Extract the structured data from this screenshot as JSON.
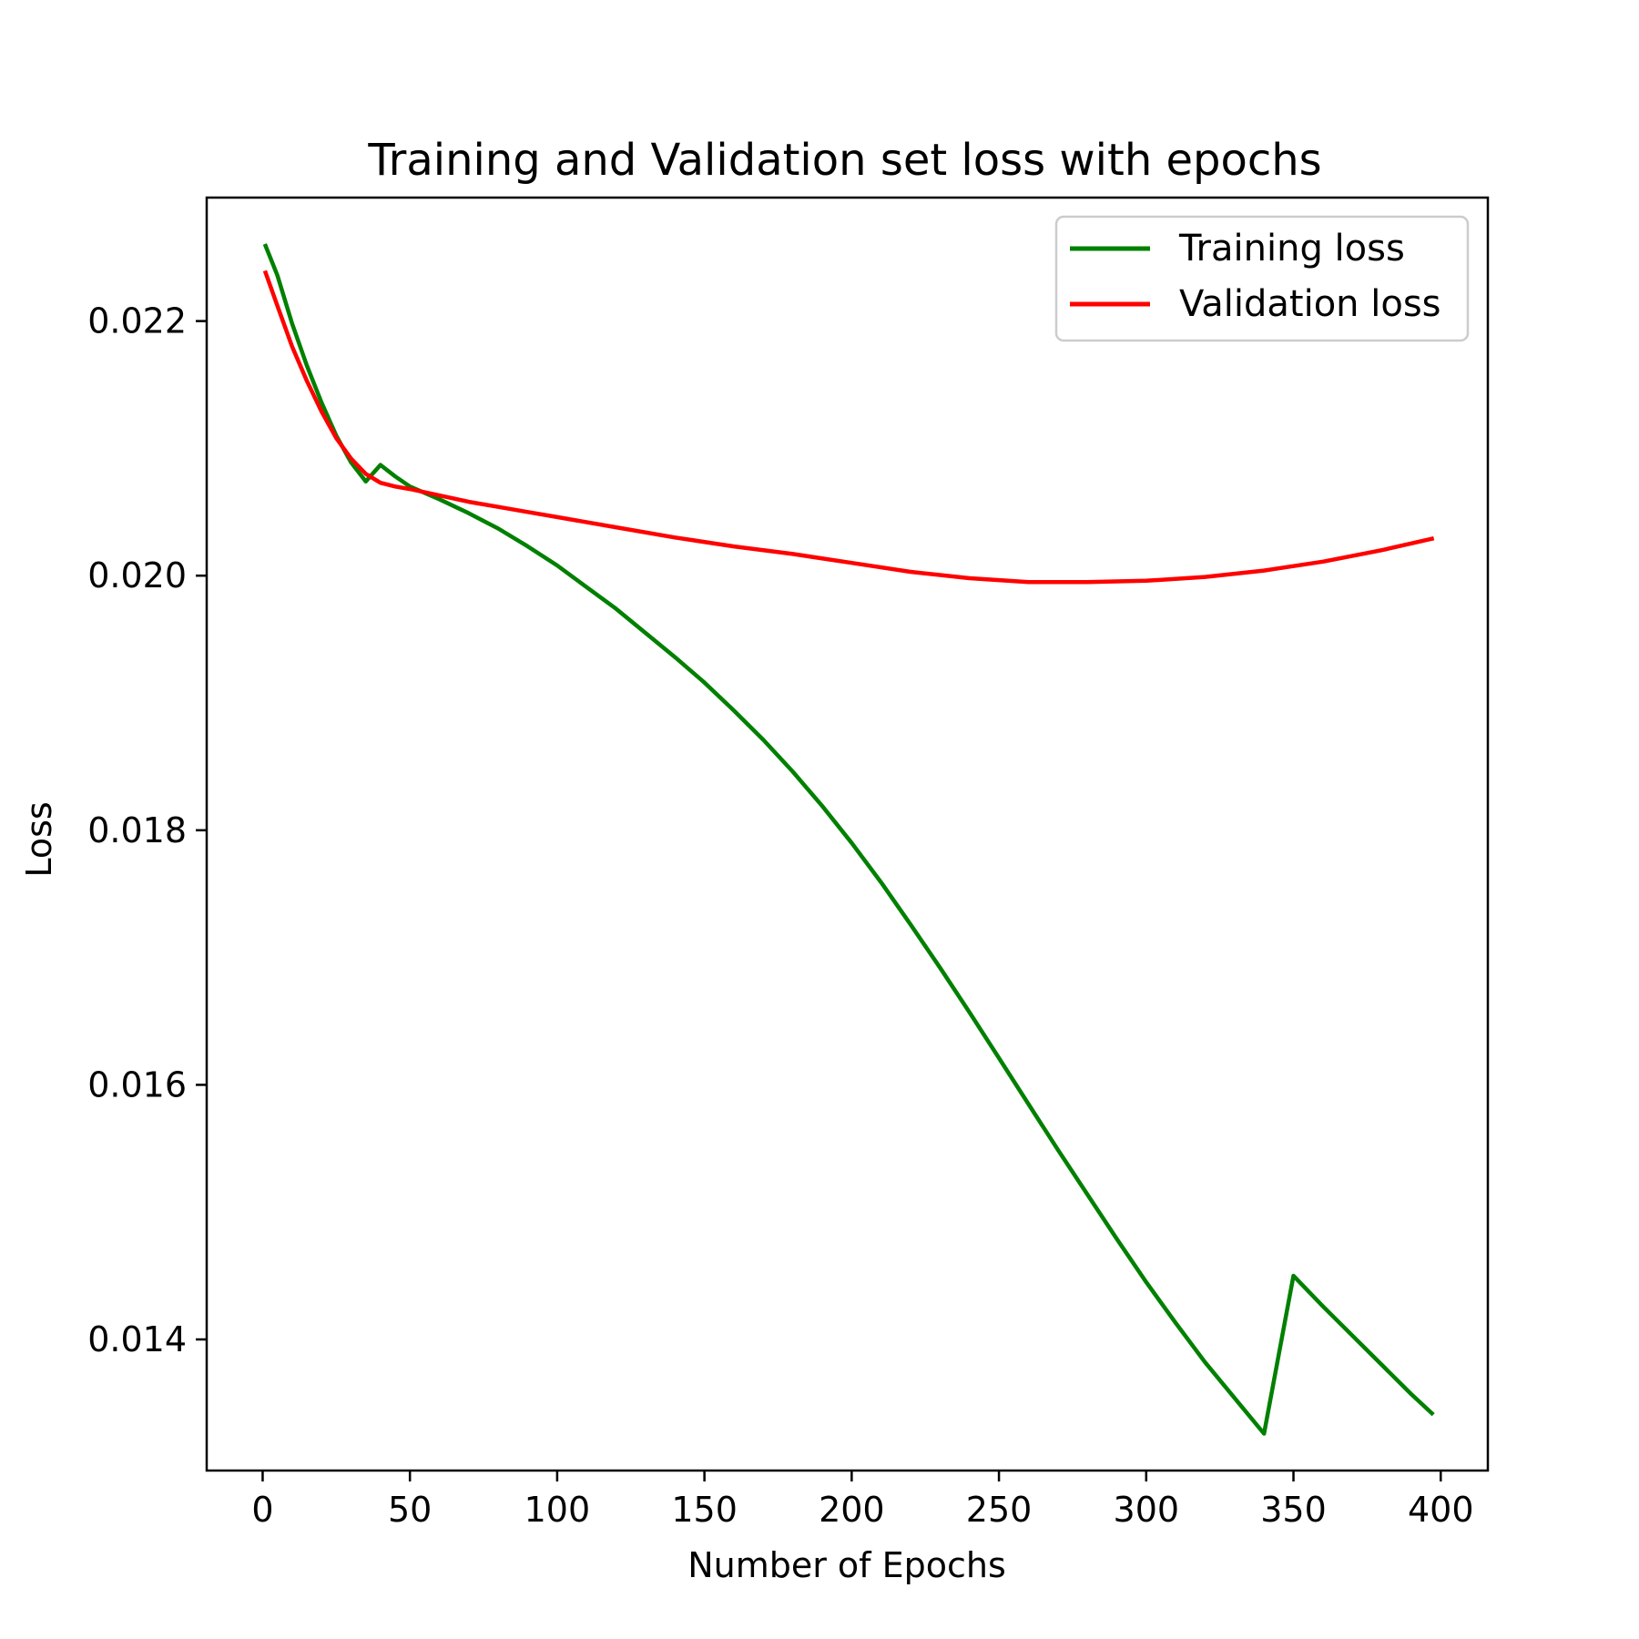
{
  "chart_data": {
    "type": "line",
    "title": "Training and Validation set loss with epochs",
    "xlabel": "Number of Epochs",
    "ylabel": "Loss",
    "xlim": [
      -19,
      416
    ],
    "ylim": [
      0.01297,
      0.02297
    ],
    "xticks": [
      0,
      50,
      100,
      150,
      200,
      250,
      300,
      350,
      400
    ],
    "xtick_labels": [
      "0",
      "50",
      "100",
      "150",
      "200",
      "250",
      "300",
      "350",
      "400"
    ],
    "yticks": [
      0.014,
      0.016,
      0.018,
      0.02,
      0.022
    ],
    "ytick_labels": [
      "0.014",
      "0.016",
      "0.018",
      "0.020",
      "0.022"
    ],
    "grid": false,
    "legend_position": "top-right",
    "series": [
      {
        "name": "Training loss",
        "color": "#008000",
        "x": [
          1,
          5,
          10,
          15,
          20,
          25,
          30,
          35,
          40,
          45,
          50,
          60,
          70,
          80,
          90,
          100,
          110,
          120,
          130,
          140,
          150,
          160,
          170,
          180,
          190,
          200,
          210,
          220,
          230,
          240,
          250,
          260,
          270,
          280,
          290,
          300,
          310,
          320,
          330,
          340,
          350,
          360,
          370,
          380,
          390,
          397
        ],
        "y": [
          0.02259,
          0.02236,
          0.02198,
          0.02165,
          0.02136,
          0.0211,
          0.02089,
          0.02074,
          0.02087,
          0.02078,
          0.0207,
          0.0206,
          0.02049,
          0.02037,
          0.02023,
          0.02008,
          0.01991,
          0.01974,
          0.01955,
          0.01936,
          0.01916,
          0.01894,
          0.01871,
          0.01846,
          0.01819,
          0.0179,
          0.01759,
          0.01726,
          0.01692,
          0.01657,
          0.01621,
          0.01585,
          0.01549,
          0.01514,
          0.01479,
          0.01445,
          0.01413,
          0.01382,
          0.01354,
          0.01326,
          0.0145,
          0.01426,
          0.01403,
          0.0138,
          0.01357,
          0.01342
        ]
      },
      {
        "name": "Validation loss",
        "color": "#ff0000",
        "x": [
          1,
          5,
          10,
          15,
          20,
          25,
          30,
          35,
          40,
          45,
          50,
          60,
          70,
          80,
          90,
          100,
          120,
          140,
          160,
          180,
          200,
          220,
          240,
          260,
          270,
          280,
          300,
          320,
          340,
          360,
          380,
          397
        ],
        "y": [
          0.02238,
          0.02212,
          0.0218,
          0.02153,
          0.02129,
          0.02108,
          0.02092,
          0.0208,
          0.02073,
          0.0207,
          0.02068,
          0.02063,
          0.02058,
          0.02054,
          0.0205,
          0.02046,
          0.02038,
          0.0203,
          0.02023,
          0.02017,
          0.0201,
          0.02003,
          0.01998,
          0.01995,
          0.01995,
          0.01995,
          0.01996,
          0.01999,
          0.02004,
          0.02011,
          0.0202,
          0.02029
        ]
      }
    ]
  }
}
